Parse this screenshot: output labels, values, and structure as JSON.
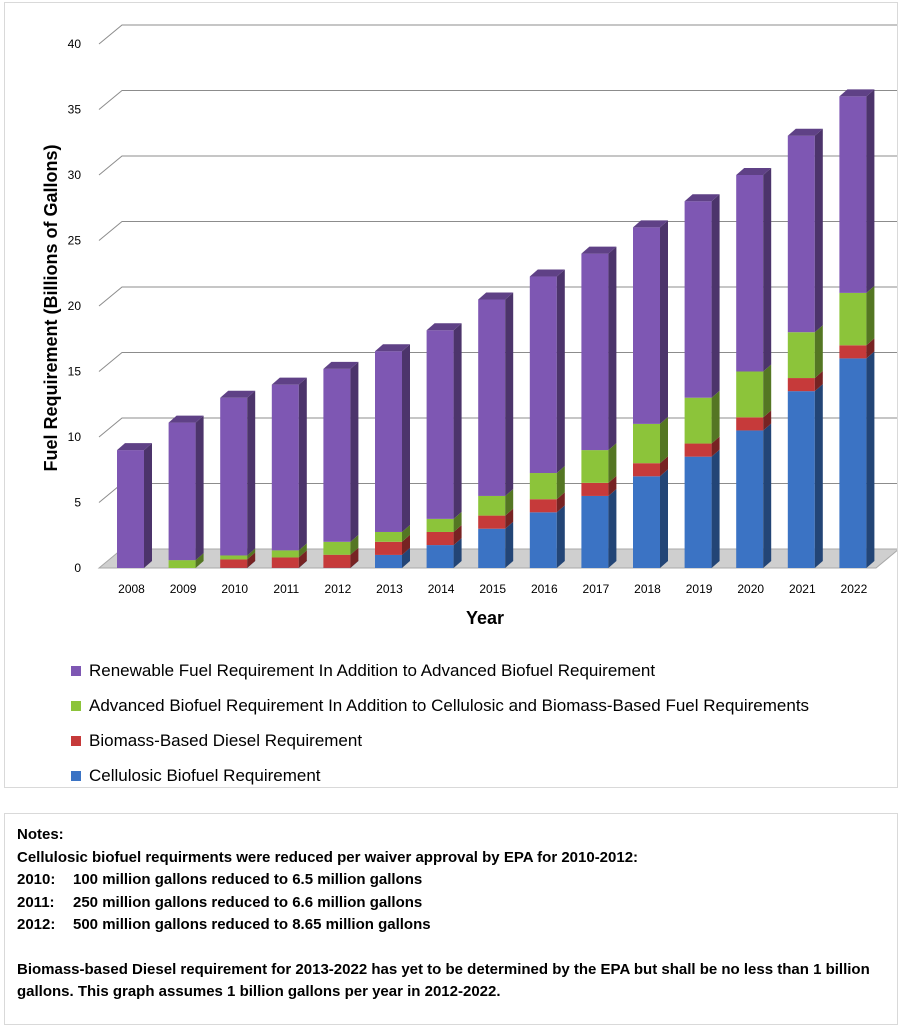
{
  "chart_data": {
    "type": "bar",
    "stacked": true,
    "three_d": true,
    "categories": [
      "2008",
      "2009",
      "2010",
      "2011",
      "2012",
      "2013",
      "2014",
      "2015",
      "2016",
      "2017",
      "2018",
      "2019",
      "2020",
      "2021",
      "2022"
    ],
    "series": [
      {
        "name": "Cellulosic Biofuel Requirement",
        "color": "#3b73c4",
        "values": [
          0,
          0,
          0.0065,
          0.0066,
          0.00865,
          1,
          1.75,
          3,
          4.25,
          5.5,
          7,
          8.5,
          10.5,
          13.5,
          16
        ]
      },
      {
        "name": "Biomass-Based Diesel Requirement",
        "color": "#c63a3a",
        "values": [
          0,
          0,
          0.65,
          0.8,
          1,
          1,
          1,
          1,
          1,
          1,
          1,
          1,
          1,
          1,
          1
        ]
      },
      {
        "name": "Advanced Biofuel Requirement In Addition to Cellulosic and Biomass-Based Fuel Requirements",
        "color": "#8cc43a",
        "values": [
          0,
          0.6,
          0.3,
          0.54,
          0.99,
          0.75,
          1,
          1.5,
          2,
          2.5,
          3,
          3.5,
          3.5,
          3.5,
          4
        ]
      },
      {
        "name": "Renewable Fuel Requirement In Addition to Advanced Biofuel Requirement",
        "color": "#7e57b3",
        "values": [
          9,
          10.5,
          12.04,
          12.65,
          13.2,
          13.8,
          14.4,
          15,
          15,
          15,
          15,
          15,
          15,
          15,
          15
        ]
      }
    ],
    "ylim": [
      0,
      40
    ],
    "yticks": [
      "0",
      "5",
      "10",
      "15",
      "20",
      "25",
      "30",
      "35",
      "40"
    ],
    "ylabel": "Fuel Requirement (Billions of Gallons)",
    "xlabel": "Year",
    "grid": true,
    "legend_position": "bottom"
  },
  "legend": {
    "items": [
      {
        "label": "Renewable Fuel Requirement In Addition to Advanced Biofuel Requirement",
        "color": "#7e57b3"
      },
      {
        "label": "Advanced Biofuel Requirement In Addition to Cellulosic and Biomass-Based Fuel Requirements",
        "color": "#8cc43a"
      },
      {
        "label": "Biomass-Based Diesel Requirement",
        "color": "#c63a3a"
      },
      {
        "label": "Cellulosic Biofuel Requirement",
        "color": "#3b73c4"
      }
    ]
  },
  "notes": {
    "heading": "Notes:",
    "intro": "Cellulosic biofuel requirments were reduced per waiver approval by EPA for 2010-2012:",
    "waivers": [
      {
        "year": "2010:",
        "text": "100 million gallons reduced to 6.5 million gallons"
      },
      {
        "year": "2011:",
        "text": "250 million gallons reduced to 6.6 million gallons"
      },
      {
        "year": "2012:",
        "text": "500 million gallons reduced to 8.65 million gallons"
      }
    ],
    "diesel_note": "Biomass-based Diesel requirement for 2013-2022 has yet to be determined by the EPA but shall be no less than 1 billion gallons. This graph assumes 1 billion gallons per year in 2012-2022."
  }
}
